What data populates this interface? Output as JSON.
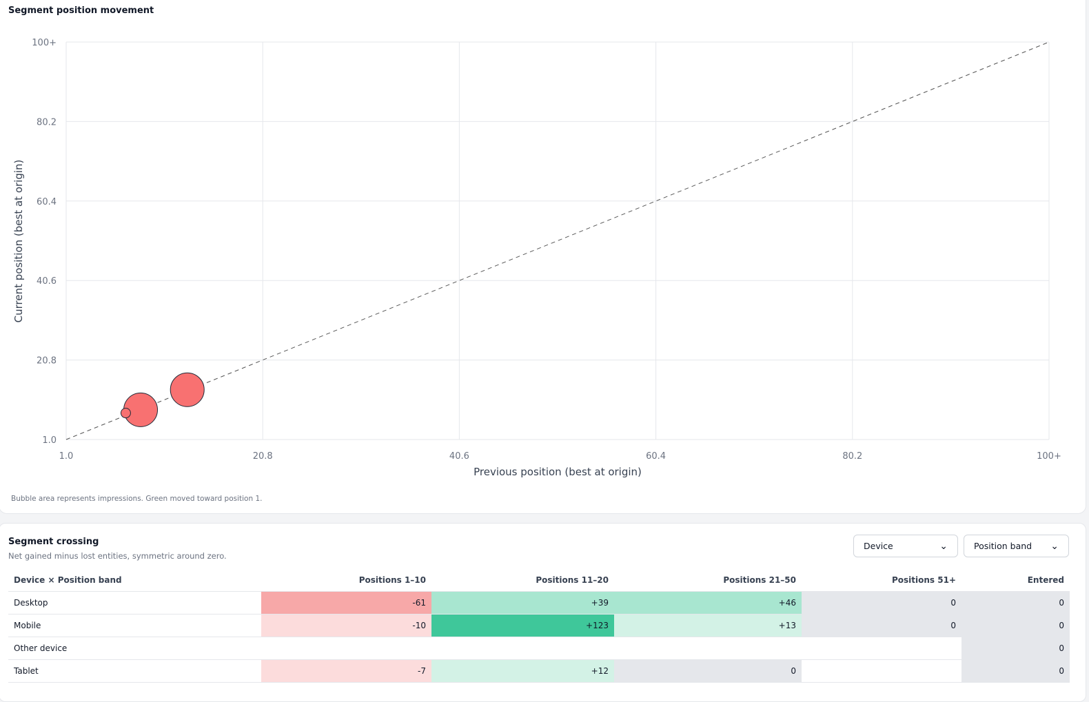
{
  "chart_card": {
    "title": "Segment position movement",
    "footnote": "Bubble area represents impressions. Green moved toward position 1."
  },
  "chart_data": {
    "type": "scatter",
    "xlabel": "Previous position (best at origin)",
    "ylabel": "Current position (best at origin)",
    "x_ticks": [
      "1.0",
      "20.8",
      "40.6",
      "60.4",
      "80.2",
      "100+"
    ],
    "y_ticks": [
      "1.0",
      "20.8",
      "40.6",
      "60.4",
      "80.2",
      "100+"
    ],
    "xlim": [
      1.0,
      100
    ],
    "ylim": [
      1.0,
      100
    ],
    "grid": true,
    "reference_line": "y = x (dashed)",
    "points": [
      {
        "x": 8.5,
        "y": 8.4,
        "size": "large",
        "color": "#f87171"
      },
      {
        "x": 13.2,
        "y": 13.4,
        "size": "large",
        "color": "#f87171"
      },
      {
        "x": 7.0,
        "y": 7.6,
        "size": "small",
        "color": "#f87171"
      }
    ]
  },
  "table_card": {
    "title": "Segment crossing",
    "subtitle": "Net gained minus lost entities, symmetric around zero.",
    "select_row_dim": "Device",
    "select_col_dim": "Position band",
    "headers": [
      "Device × Position band",
      "Positions 1–10",
      "Positions 11–20",
      "Positions 21–50",
      "Positions 51+",
      "Entered"
    ],
    "rows": [
      {
        "label": "Desktop",
        "cells": [
          "-61",
          "+39",
          "+46",
          "0",
          "0"
        ]
      },
      {
        "label": "Mobile",
        "cells": [
          "-10",
          "+123",
          "+13",
          "0",
          "0"
        ]
      },
      {
        "label": "Other device",
        "cells": [
          "",
          "",
          "",
          "",
          "0"
        ]
      },
      {
        "label": "Tablet",
        "cells": [
          "-7",
          "+12",
          "0",
          "",
          "0"
        ]
      }
    ]
  },
  "colors": {
    "neg_strong": "#f7a8a8",
    "neg_light": "#fcdcdc",
    "pos_strong": "#3fc79a",
    "pos_mid": "#a8e6d0",
    "pos_light": "#d3f2e6",
    "zero": "#e5e7eb",
    "bubble": "#f87171"
  }
}
